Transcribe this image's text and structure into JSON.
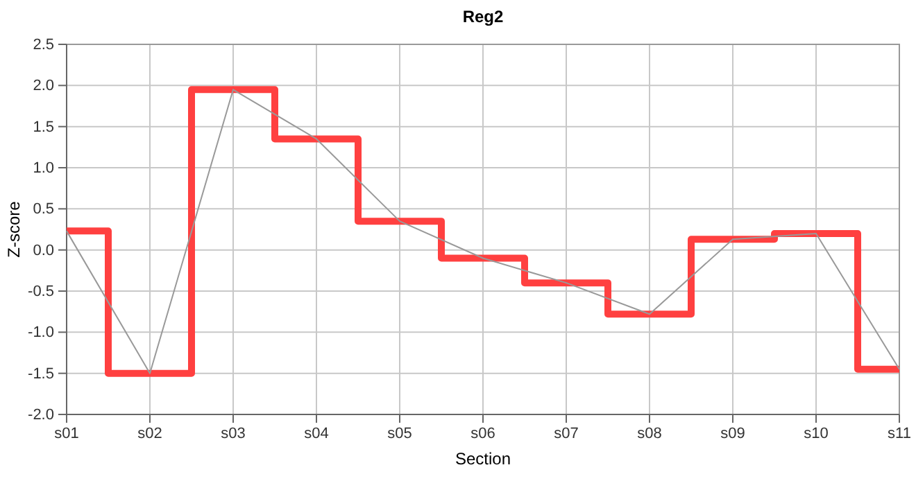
{
  "chart_data": {
    "type": "line",
    "title": "Reg2",
    "xlabel": "Section",
    "ylabel": "Z-score",
    "categories": [
      "s01",
      "s02",
      "s03",
      "s04",
      "s05",
      "s06",
      "s07",
      "s08",
      "s09",
      "s10",
      "s11"
    ],
    "series": [
      {
        "type": "step",
        "color": "#ff4040",
        "values": [
          0.23,
          -1.5,
          1.95,
          1.35,
          0.35,
          -0.1,
          -0.4,
          -0.78,
          0.13,
          0.2,
          -1.45
        ]
      },
      {
        "color": "#999999",
        "values": [
          0.23,
          -1.5,
          1.95,
          1.35,
          0.35,
          -0.1,
          -0.4,
          -0.78,
          0.13,
          0.2,
          -1.45
        ]
      }
    ],
    "ylim": [
      -2,
      2.5
    ],
    "yticks": [
      {
        "value": -2,
        "label": "-2.0"
      },
      {
        "value": -1.5,
        "label": "-1.5"
      },
      {
        "value": -1,
        "label": "-1.0"
      },
      {
        "value": -0.5,
        "label": "-0.5"
      },
      {
        "value": 0,
        "label": "0.0"
      },
      {
        "value": 0.5,
        "label": "0.5"
      },
      {
        "value": 1,
        "label": "1.0"
      },
      {
        "value": 1.5,
        "label": "1.5"
      },
      {
        "value": 2,
        "label": "2.0"
      },
      {
        "value": 2.5,
        "label": "2.5"
      }
    ],
    "grid": true,
    "marker": "none"
  }
}
